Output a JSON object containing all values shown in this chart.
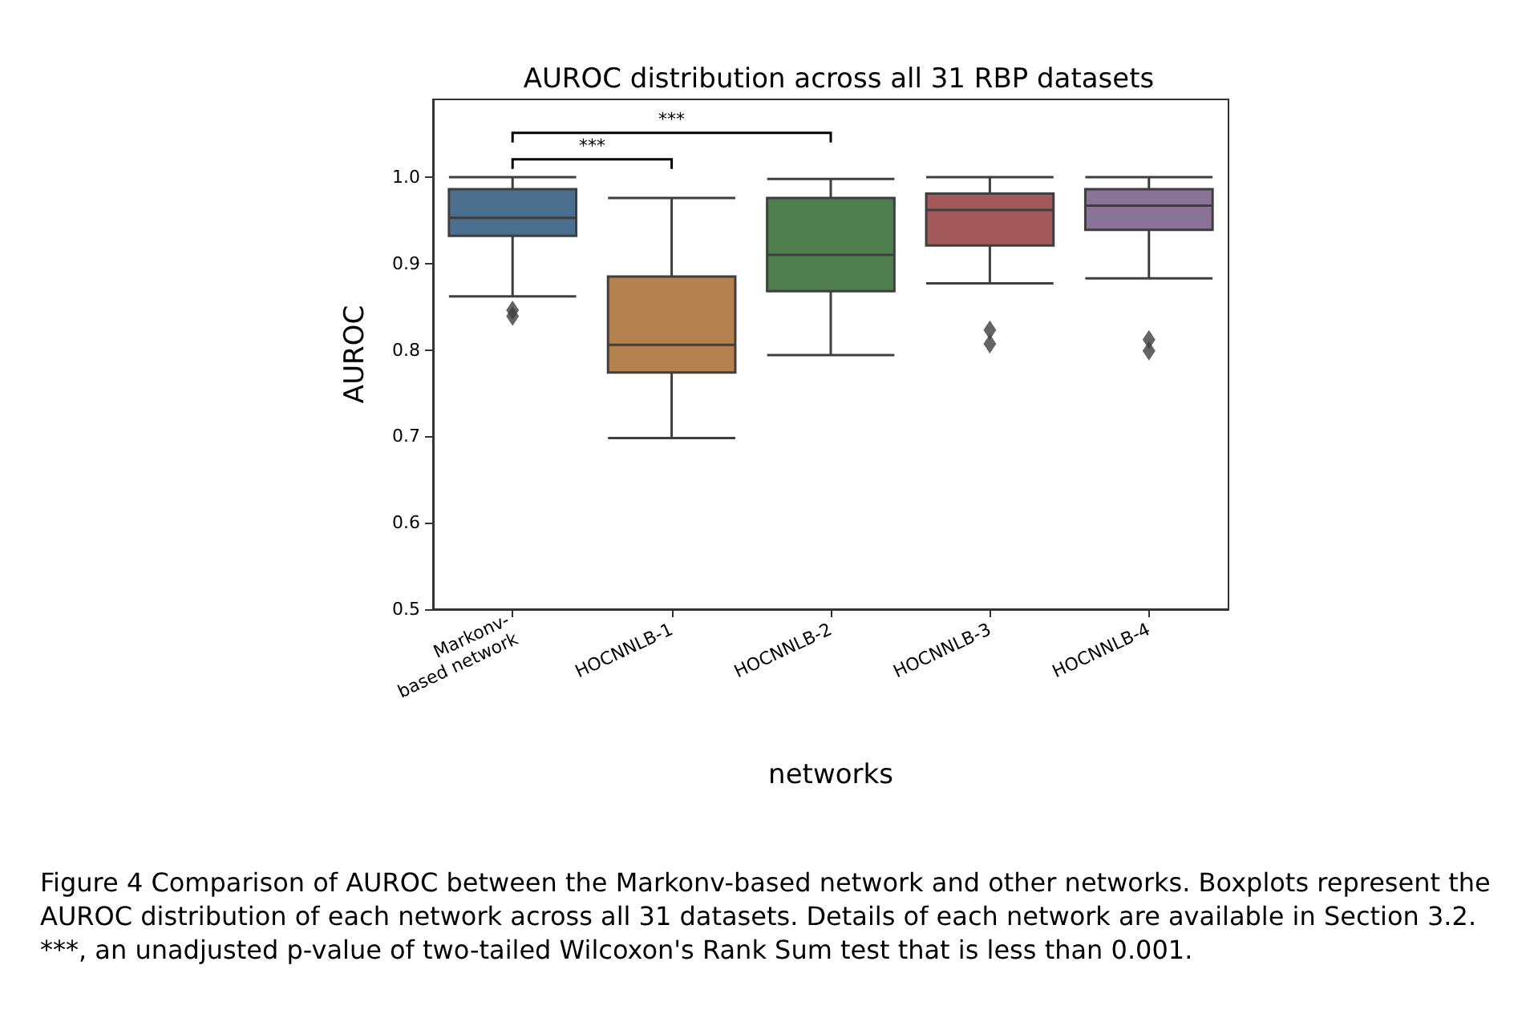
{
  "chart_data": {
    "type": "box",
    "title": "AUROC distribution across all 31 RBP datasets",
    "xlabel": "networks",
    "ylabel": "AUROC",
    "categories": [
      "Markonv-\nbased network",
      "HOCNNLB-1",
      "HOCNNLB-2",
      "HOCNNLB-3",
      "HOCNNLB-4"
    ],
    "colors": [
      "#4a6f8f",
      "#b5814f",
      "#4f7f4f",
      "#a45a5a",
      "#8b7397"
    ],
    "boxes": [
      {
        "low": 0.862,
        "q1": 0.932,
        "median": 0.953,
        "q3": 0.986,
        "high": 1.0,
        "outliers": [
          0.846,
          0.839
        ]
      },
      {
        "low": 0.698,
        "q1": 0.774,
        "median": 0.806,
        "q3": 0.885,
        "high": 0.976
      },
      {
        "low": 0.794,
        "q1": 0.868,
        "median": 0.91,
        "q3": 0.976,
        "high": 0.998
      },
      {
        "low": 0.877,
        "q1": 0.921,
        "median": 0.962,
        "q3": 0.981,
        "high": 1.0,
        "outliers": [
          0.823,
          0.807
        ]
      },
      {
        "low": 0.883,
        "q1": 0.939,
        "median": 0.967,
        "q3": 0.986,
        "high": 1.0,
        "outliers": [
          0.812,
          0.799
        ]
      }
    ],
    "ylim": [
      0.5,
      1.09
    ],
    "yticks": [
      0.5,
      0.6,
      0.7,
      0.8,
      0.9,
      {
        "value": 1.0,
        "label": "1.0"
      }
    ],
    "annotations": [
      "***",
      "***",
      "Figure 4 Comparison of AUROC between the Markonv-based network and other networks. Boxplots represent the AUROC distribution of each network across all 31 datasets. Details of each network are available in Section 3.2. ***, an unadjusted p-value of two-tailed Wilcoxon's Rank Sum test that is less than 0.001."
    ],
    "grid": false,
    "marker": "diamond"
  }
}
